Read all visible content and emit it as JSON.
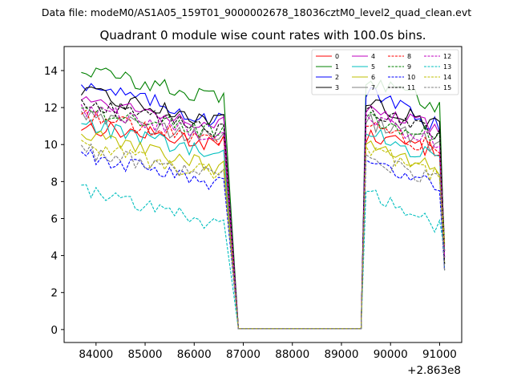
{
  "suptitle": "Data file: modeM0/AS1A05_159T01_9000002678_18036cztM0_level2_quad_clean.evt",
  "chart_data": {
    "type": "line",
    "title": "Quadrant 0 module wise count rates with 100.0s bins.",
    "xlabel": "",
    "ylabel": "",
    "x_offset_label": "+2.863e8",
    "xlim": [
      83350,
      91450
    ],
    "ylim": [
      -0.7,
      15.3
    ],
    "x_ticks": [
      84000,
      85000,
      86000,
      87000,
      88000,
      89000,
      90000,
      91000
    ],
    "x_tick_labels": [
      "84000",
      "85000",
      "86000",
      "87000",
      "88000",
      "89000",
      "90000",
      "91000"
    ],
    "y_ticks": [
      0,
      2,
      4,
      6,
      8,
      10,
      12,
      14
    ],
    "y_tick_labels": [
      "0",
      "2",
      "4",
      "6",
      "8",
      "10",
      "12",
      "14"
    ],
    "legend_location": "upper right",
    "legend_columns": 4,
    "segments": {
      "seg1_x": {
        "start": 83700,
        "step": 100,
        "count": 30
      },
      "flat_x": [
        86900,
        89400
      ],
      "seg2_x": {
        "start": 89500,
        "step": 100,
        "count": 17
      }
    },
    "series": [
      {
        "name": "0",
        "color": "#ff0000",
        "dashed": false,
        "base1": 11.0,
        "base2": 10.5,
        "drop": 0.6
      },
      {
        "name": "1",
        "color": "#008000",
        "dashed": false,
        "base1": 14.1,
        "base2": 13.6,
        "drop": 1.1
      },
      {
        "name": "2",
        "color": "#0000ff",
        "dashed": false,
        "base1": 13.4,
        "base2": 12.9,
        "drop": 1.4
      },
      {
        "name": "3",
        "color": "#000000",
        "dashed": false,
        "base1": 12.8,
        "base2": 12.4,
        "drop": 1.0
      },
      {
        "name": "4",
        "color": "#bf00bf",
        "dashed": false,
        "base1": 12.5,
        "base2": 12.0,
        "drop": 0.9
      },
      {
        "name": "5",
        "color": "#00bfbf",
        "dashed": false,
        "base1": 11.2,
        "base2": 10.8,
        "drop": 1.2
      },
      {
        "name": "6",
        "color": "#bfbf00",
        "dashed": false,
        "base1": 10.6,
        "base2": 10.2,
        "drop": 1.2
      },
      {
        "name": "7",
        "color": "#808080",
        "dashed": false,
        "base1": 11.8,
        "base2": 11.3,
        "drop": 1.0
      },
      {
        "name": "8",
        "color": "#ff0000",
        "dashed": true,
        "base1": 11.6,
        "base2": 11.1,
        "drop": 1.0
      },
      {
        "name": "9",
        "color": "#008000",
        "dashed": true,
        "base1": 11.9,
        "base2": 11.5,
        "drop": 0.8
      },
      {
        "name": "10",
        "color": "#0000ff",
        "dashed": true,
        "base1": 9.5,
        "base2": 9.2,
        "drop": 1.1
      },
      {
        "name": "11",
        "color": "#000000",
        "dashed": true,
        "base1": 12.3,
        "base2": 11.9,
        "drop": 1.0
      },
      {
        "name": "12",
        "color": "#bf00bf",
        "dashed": true,
        "base1": 12.0,
        "base2": 11.6,
        "drop": 1.1
      },
      {
        "name": "13",
        "color": "#00bfbf",
        "dashed": true,
        "base1": 7.6,
        "base2": 7.4,
        "drop": 1.3
      },
      {
        "name": "14",
        "color": "#bfbf00",
        "dashed": true,
        "base1": 10.0,
        "base2": 9.8,
        "drop": 1.1
      },
      {
        "name": "15",
        "color": "#808080",
        "dashed": true,
        "base1": 9.7,
        "base2": 9.3,
        "drop": 0.9
      }
    ]
  }
}
